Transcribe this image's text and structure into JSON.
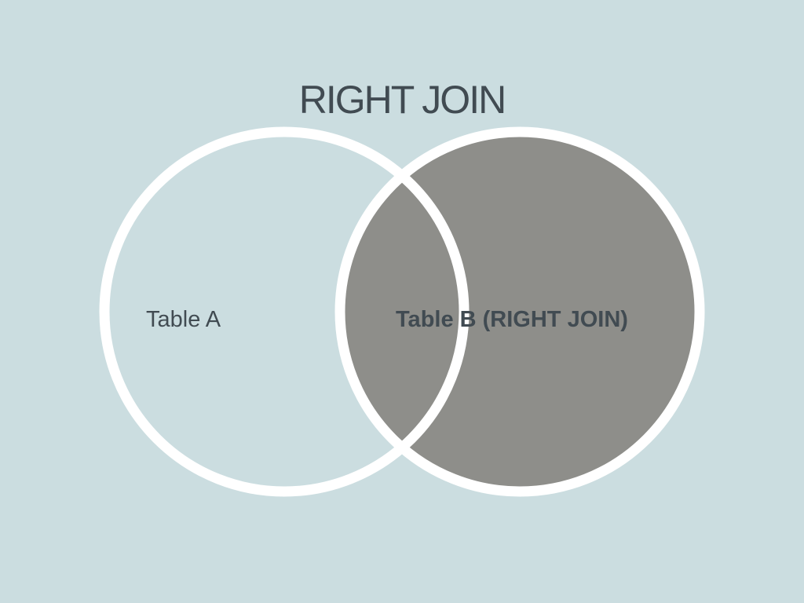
{
  "title": "RIGHT JOIN",
  "sets": {
    "a": {
      "label": "Table A",
      "highlighted": false
    },
    "b": {
      "label": "Table B (RIGHT JOIN)",
      "highlighted": true
    }
  },
  "colors": {
    "background": "#cbdde0",
    "highlight_fill": "#8e8e8a",
    "outline": "#ffffff",
    "text": "#414b52"
  }
}
